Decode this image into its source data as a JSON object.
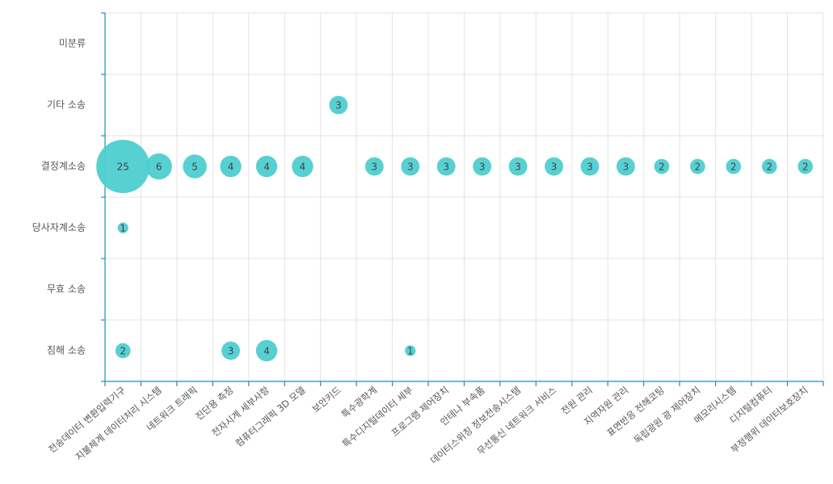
{
  "chart_data": {
    "type": "bubble",
    "categories_x": [
      "전송데이터 변환입력기구",
      "지불체계 데이터처리 시스템",
      "네트워크 트래픽",
      "진단용 측정",
      "전자시계 세부사항",
      "컴퓨터그래픽 3D 모델",
      "보안키드",
      "특수광학계",
      "특수디지털데이터 세부",
      "프로그램 제어장치",
      "안테나 부속품",
      "데이터스위칭 정보전송시스템",
      "무선통신 네트워크 서비스",
      "전원 관리",
      "지역자원 관리",
      "표면반응 전해코팅",
      "독립광원 광 제어장치",
      "메모리시스템",
      "디지털컴퓨터",
      "부정행위 데이터보호장치"
    ],
    "categories_y": [
      "미분류",
      "기타 소송",
      "결정계소송",
      "당사자계소송",
      "무효 소송",
      "침해 소송"
    ],
    "points": [
      {
        "x": "보안키드",
        "y": "기타 소송",
        "value": 3
      },
      {
        "x": "전송데이터 변환입력기구",
        "y": "결정계소송",
        "value": 25
      },
      {
        "x": "지불체계 데이터처리 시스템",
        "y": "결정계소송",
        "value": 6
      },
      {
        "x": "네트워크 트래픽",
        "y": "결정계소송",
        "value": 5
      },
      {
        "x": "진단용 측정",
        "y": "결정계소송",
        "value": 4
      },
      {
        "x": "전자시계 세부사항",
        "y": "결정계소송",
        "value": 4
      },
      {
        "x": "컴퓨터그래픽 3D 모델",
        "y": "결정계소송",
        "value": 4
      },
      {
        "x": "특수광학계",
        "y": "결정계소송",
        "value": 3
      },
      {
        "x": "특수디지털데이터 세부",
        "y": "결정계소송",
        "value": 3
      },
      {
        "x": "프로그램 제어장치",
        "y": "결정계소송",
        "value": 3
      },
      {
        "x": "안테나 부속품",
        "y": "결정계소송",
        "value": 3
      },
      {
        "x": "데이터스위칭 정보전송시스템",
        "y": "결정계소송",
        "value": 3
      },
      {
        "x": "무선통신 네트워크 서비스",
        "y": "결정계소송",
        "value": 3
      },
      {
        "x": "전원 관리",
        "y": "결정계소송",
        "value": 3
      },
      {
        "x": "지역자원 관리",
        "y": "결정계소송",
        "value": 3
      },
      {
        "x": "표면반응 전해코팅",
        "y": "결정계소송",
        "value": 2
      },
      {
        "x": "독립광원 광 제어장치",
        "y": "결정계소송",
        "value": 2
      },
      {
        "x": "메모리시스템",
        "y": "결정계소송",
        "value": 2
      },
      {
        "x": "디지털컴퓨터",
        "y": "결정계소송",
        "value": 2
      },
      {
        "x": "부정행위 데이터보호장치",
        "y": "결정계소송",
        "value": 2
      },
      {
        "x": "전송데이터 변환입력기구",
        "y": "당사자계소송",
        "value": 1
      },
      {
        "x": "전송데이터 변환입력기구",
        "y": "침해 소송",
        "value": 2
      },
      {
        "x": "진단용 측정",
        "y": "침해 소송",
        "value": 3
      },
      {
        "x": "전자시계 세부사항",
        "y": "침해 소송",
        "value": 4
      },
      {
        "x": "특수디지털데이터 세부",
        "y": "침해 소송",
        "value": 1
      }
    ],
    "grid": true,
    "colors": {
      "bubble": "#4ecdd0",
      "axis": "#1f8fb6",
      "grid": "#e3e3e3",
      "text": "#555555"
    }
  }
}
